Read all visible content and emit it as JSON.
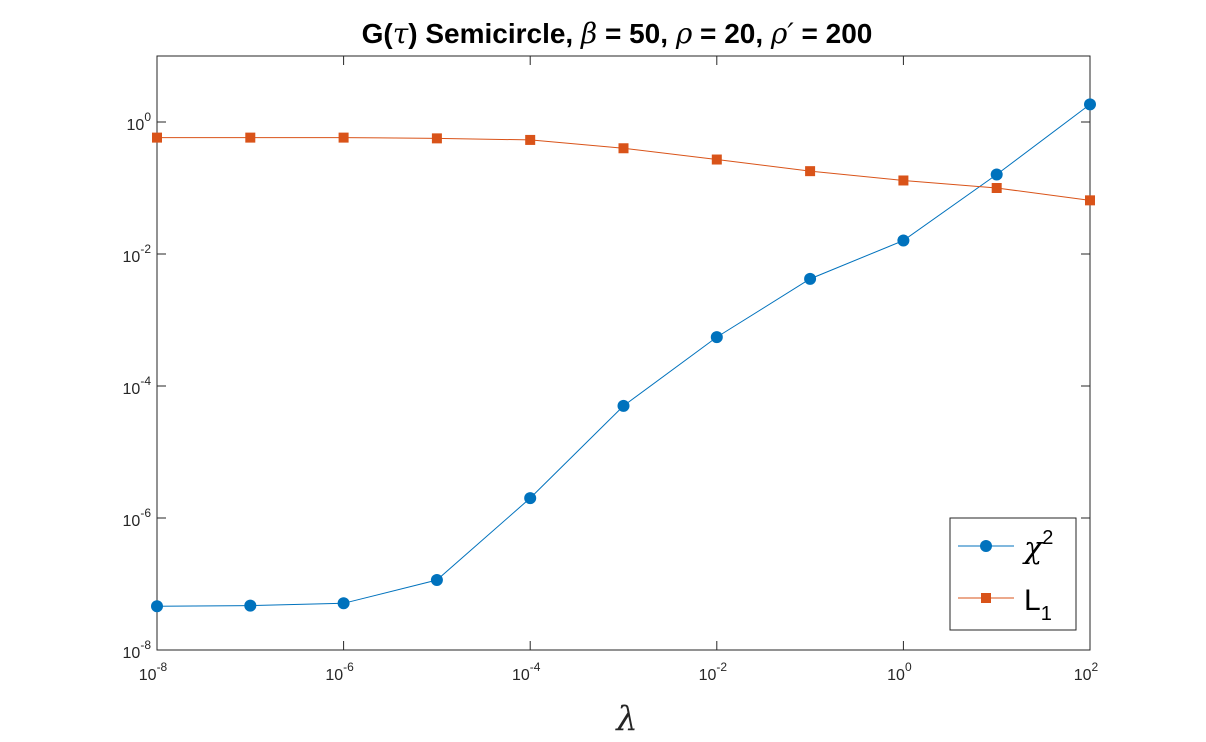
{
  "chart_data": {
    "type": "line",
    "title": {
      "prefix": "G(",
      "tau": "τ",
      "mid": ") Semicircle, ",
      "beta": "β",
      "beta_val": " = 50, ",
      "rho": "ρ",
      "rho_val": " = 20, ",
      "rho_prime": "ρ′",
      "rho_prime_val": " = 200"
    },
    "xlabel": "λ",
    "ylabel": "",
    "x_scale": "log",
    "y_scale": "log",
    "xlim": [
      1e-08,
      100
    ],
    "ylim": [
      1e-08,
      10
    ],
    "x_ticks": [
      {
        "base": "10",
        "exp": "-8"
      },
      {
        "base": "10",
        "exp": "-6"
      },
      {
        "base": "10",
        "exp": "-4"
      },
      {
        "base": "10",
        "exp": "-2"
      },
      {
        "base": "10",
        "exp": "0"
      },
      {
        "base": "10",
        "exp": "2"
      }
    ],
    "y_ticks": [
      {
        "base": "10",
        "exp": "-8"
      },
      {
        "base": "10",
        "exp": "-6"
      },
      {
        "base": "10",
        "exp": "-4"
      },
      {
        "base": "10",
        "exp": "-2"
      },
      {
        "base": "10",
        "exp": "0"
      }
    ],
    "grid": false,
    "legend_position": "bottom-right",
    "x": [
      1e-08,
      1e-07,
      1e-06,
      1e-05,
      0.0001,
      0.001,
      0.01,
      0.1,
      1,
      10,
      100
    ],
    "series": [
      {
        "name": "χ",
        "name_sup": "2",
        "color": "#0072BD",
        "marker": "circle",
        "values": [
          4.6e-08,
          4.7e-08,
          5.1e-08,
          1.15e-07,
          2e-06,
          5e-05,
          0.00055,
          0.0042,
          0.016,
          0.16,
          1.85
        ]
      },
      {
        "name": "L",
        "name_sub": "1",
        "color": "#D95319",
        "marker": "square",
        "values": [
          0.58,
          0.58,
          0.58,
          0.565,
          0.535,
          0.4,
          0.27,
          0.18,
          0.13,
          0.1,
          0.065
        ]
      }
    ]
  }
}
